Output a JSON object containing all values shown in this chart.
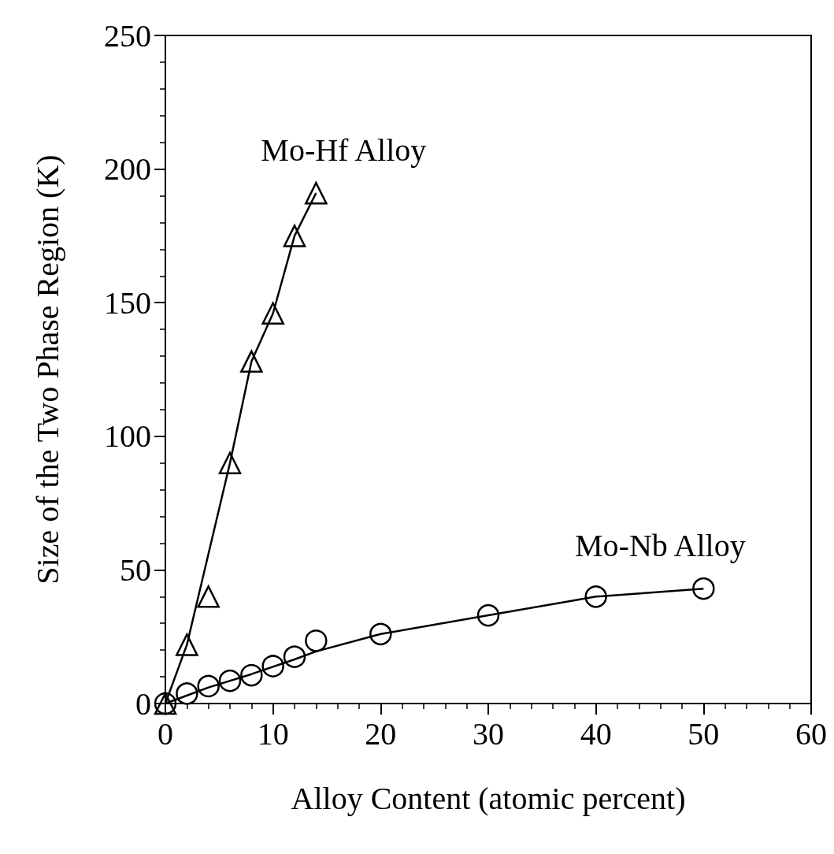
{
  "chart_data": {
    "type": "scatter",
    "xlabel": "Alloy Content (atomic percent)",
    "ylabel": "Size of the Two Phase Region (K)",
    "xlim": [
      0,
      60
    ],
    "xticks": [
      0,
      10,
      20,
      30,
      40,
      50,
      60
    ],
    "ylim": [
      0,
      250
    ],
    "yticks": [
      0,
      50,
      100,
      150,
      200,
      250
    ],
    "grid": false,
    "line_style": "solid",
    "series": [
      {
        "name": "Mo-Nb Alloy",
        "marker": "circle",
        "color": "#000000",
        "x": [
          0,
          2,
          4,
          6,
          8,
          10,
          12,
          14,
          20,
          30,
          40,
          50
        ],
        "values": [
          0,
          3.7,
          6.5,
          8.5,
          10.6,
          14,
          17.5,
          23.5,
          26,
          33,
          40,
          43
        ]
      },
      {
        "name": "Mo-Hf Alloy",
        "marker": "triangle",
        "color": "#000000",
        "x": [
          0,
          2,
          4,
          6,
          8,
          10,
          12,
          14
        ],
        "values": [
          0,
          22,
          40,
          90,
          128,
          146,
          175,
          191
        ]
      },
      {
        "type": "line",
        "marker": "none",
        "color": "#000000",
        "x": [
          0,
          2,
          6,
          8,
          10,
          12,
          14
        ],
        "values": [
          0,
          22,
          90,
          128,
          146,
          175,
          191
        ]
      },
      {
        "type": "line",
        "marker": "none",
        "color": "#000000",
        "x": [
          0,
          4,
          8,
          12,
          14,
          20,
          30,
          40,
          50
        ],
        "values": [
          0,
          6,
          11,
          16.5,
          19.5,
          26,
          33,
          40,
          43
        ]
      }
    ]
  }
}
